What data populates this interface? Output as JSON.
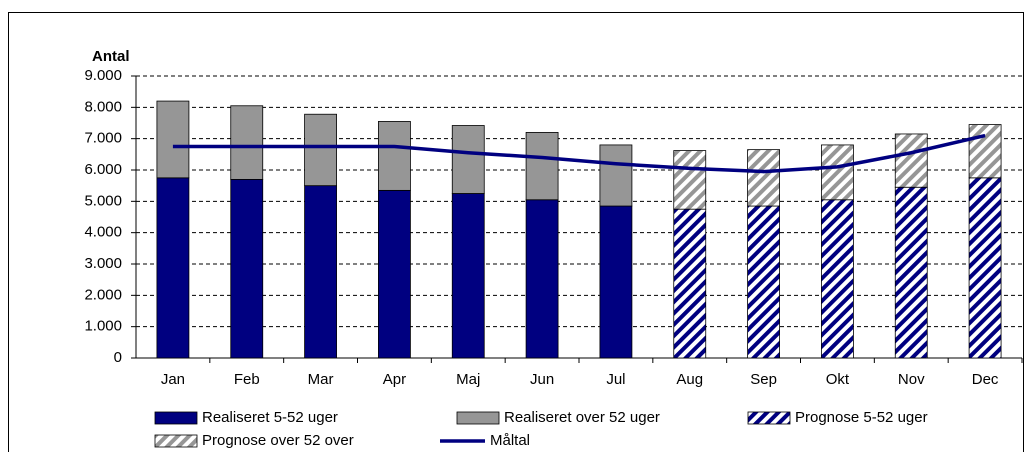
{
  "chart_data": {
    "type": "bar",
    "y_title": "Antal",
    "categories": [
      "Jan",
      "Feb",
      "Mar",
      "Apr",
      "Maj",
      "Jun",
      "Jul",
      "Aug",
      "Sep",
      "Okt",
      "Nov",
      "Dec"
    ],
    "series": [
      {
        "name": "Realiseret 5-52 uger",
        "color": "#000080",
        "values": [
          5750,
          5700,
          5500,
          5350,
          5250,
          5050,
          4850,
          null,
          null,
          null,
          null,
          null
        ]
      },
      {
        "name": "Realiseret over 52 uger",
        "color": "#969696",
        "values": [
          2450,
          2350,
          2280,
          2200,
          2170,
          2150,
          1950,
          null,
          null,
          null,
          null,
          null
        ]
      },
      {
        "name": "Prognose 5-52 uger",
        "color": "#000080",
        "pattern": "hatch",
        "values": [
          null,
          null,
          null,
          null,
          null,
          null,
          null,
          4750,
          4850,
          5050,
          5450,
          5750
        ]
      },
      {
        "name": "Prognose over 52 over",
        "color": "#969696",
        "pattern": "hatch",
        "values": [
          null,
          null,
          null,
          null,
          null,
          null,
          null,
          1870,
          1800,
          1750,
          1700,
          1700
        ]
      },
      {
        "name": "Måltal",
        "type": "line",
        "color": "#000080",
        "values": [
          6750,
          6750,
          6750,
          6750,
          6550,
          6400,
          6200,
          6050,
          5950,
          6100,
          6550,
          7100
        ]
      }
    ],
    "ylim": [
      0,
      9000
    ],
    "yticks": [
      0,
      {
        "value": 1000,
        "label": "1.000"
      },
      {
        "value": 2000,
        "label": "2.000"
      },
      {
        "value": 3000,
        "label": "3.000"
      },
      {
        "value": 4000,
        "label": "4.000"
      },
      {
        "value": 5000,
        "label": "5.000"
      },
      {
        "value": 6000,
        "label": "6.000"
      },
      {
        "value": 7000,
        "label": "7.000"
      },
      {
        "value": 8000,
        "label": "8.000"
      },
      {
        "value": 9000,
        "label": "9.000"
      }
    ],
    "grid": true
  }
}
